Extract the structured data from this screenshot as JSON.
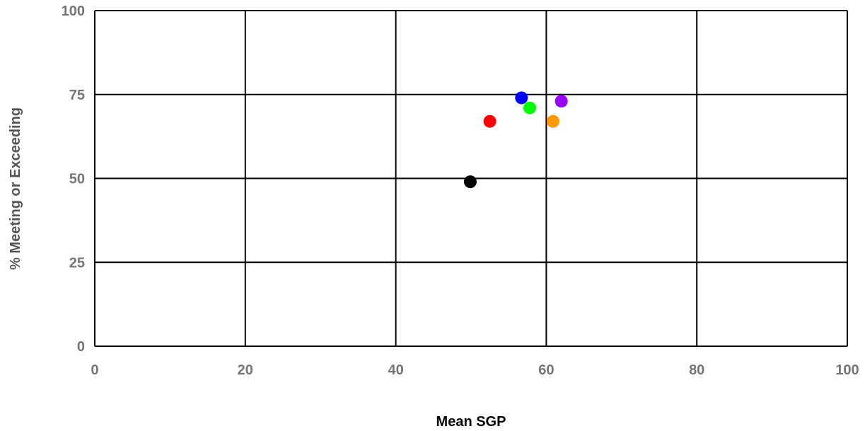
{
  "chart_data": {
    "type": "scatter",
    "title": "",
    "xlabel": "Mean SGP",
    "ylabel": "% Meeting or Exceeding",
    "xlim": [
      0,
      100
    ],
    "ylim": [
      0,
      100
    ],
    "x_ticks": [
      "0",
      "20",
      "40",
      "60",
      "80",
      "100"
    ],
    "y_ticks": [
      "0",
      "25",
      "50",
      "75",
      "100"
    ],
    "grid": true,
    "legend": "none",
    "colors": {
      "tick_text": "#757575",
      "axis_title_x": "#000000",
      "axis_title_y": "#555555",
      "grid": "#000000"
    },
    "points": [
      {
        "x": 49.9,
        "y": 49,
        "color": "#000000"
      },
      {
        "x": 52.5,
        "y": 67,
        "color": "#ff0000"
      },
      {
        "x": 56.7,
        "y": 74,
        "color": "#0000ff"
      },
      {
        "x": 57.8,
        "y": 71,
        "color": "#00ff00"
      },
      {
        "x": 60.9,
        "y": 67,
        "color": "#ff9900"
      },
      {
        "x": 62.0,
        "y": 73,
        "color": "#9900ff"
      }
    ]
  }
}
